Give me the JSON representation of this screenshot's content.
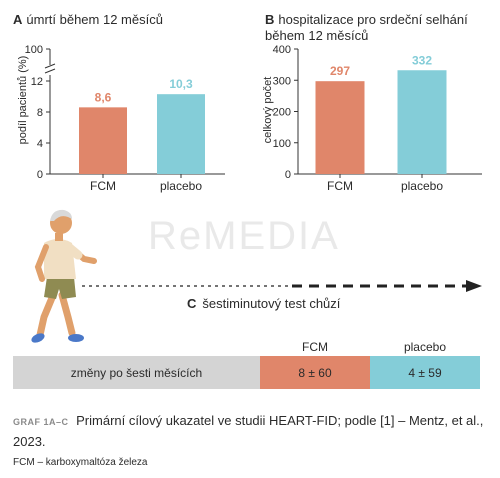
{
  "chart_data": [
    {
      "type": "bar",
      "panel": "A",
      "title": "úmrtí během 12 měsíců",
      "ylabel": "podíl pacientů (%)",
      "categories": [
        "FCM",
        "placebo"
      ],
      "values": [
        8.6,
        10.3
      ],
      "value_labels": [
        "8,6",
        "10,3"
      ],
      "colors": [
        "#e0866a",
        "#84cdd8"
      ],
      "yticks": [
        "0",
        "4",
        "8",
        "12",
        "100"
      ],
      "axis_break": true
    },
    {
      "type": "bar",
      "panel": "B",
      "title": "hospitalizace pro srdeční selhání během 12 měsíců",
      "title_lines": [
        "hospitalizace pro srdeční selhání",
        "během 12 měsíců"
      ],
      "ylabel": "celkový počet",
      "categories": [
        "FCM",
        "placebo"
      ],
      "values": [
        297,
        332
      ],
      "value_labels": [
        "297",
        "332"
      ],
      "colors": [
        "#e0866a",
        "#84cdd8"
      ],
      "yticks": [
        0,
        100,
        200,
        300,
        400
      ],
      "ylim": [
        0,
        400
      ]
    },
    {
      "type": "table",
      "panel": "C",
      "title": "šestiminutový test chůzí",
      "row_label": "změny po šesti měsících",
      "columns": [
        "FCM",
        "placebo"
      ],
      "values": [
        "8 ± 60",
        "4 ± 59"
      ],
      "colors": {
        "row_label": "#d4d4d4",
        "FCM": "#e0866a",
        "placebo": "#84cdd8"
      }
    }
  ],
  "watermark": "ReMEDIA",
  "caption": {
    "tag": "GRAF 1A–C",
    "text": "Primární cílový ukazatel ve studii HEART-FID; podle [1] – Mentz, et al., 2023."
  },
  "footnote": "FCM – karboxymaltóza železa"
}
